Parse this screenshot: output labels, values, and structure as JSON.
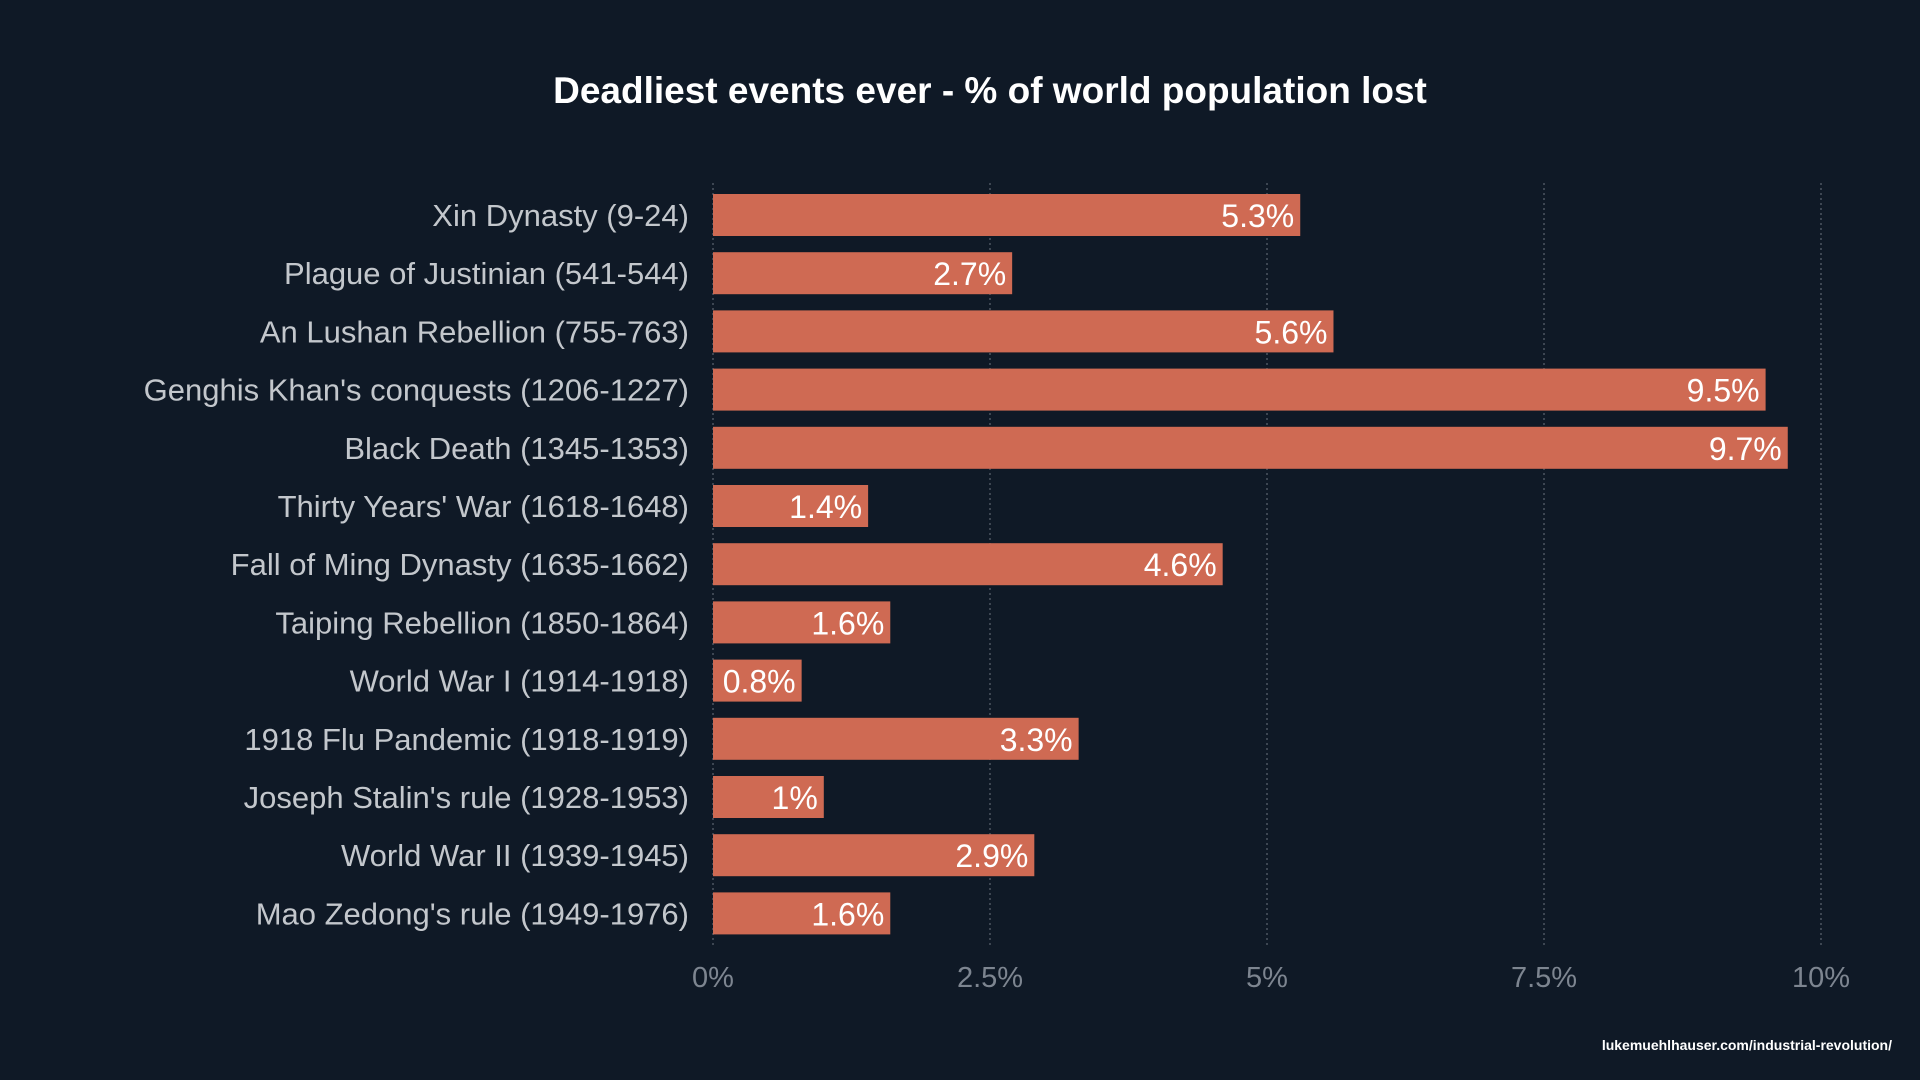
{
  "chart_data": {
    "type": "bar",
    "orientation": "horizontal",
    "title": "Deadliest events ever - % of world population lost",
    "categories": [
      "Xin Dynasty (9-24)",
      "Plague of Justinian (541-544)",
      "An Lushan Rebellion (755-763)",
      "Genghis Khan's conquests (1206-1227)",
      "Black Death (1345-1353)",
      "Thirty Years' War (1618-1648)",
      "Fall of Ming Dynasty (1635-1662)",
      "Taiping Rebellion (1850-1864)",
      "World War I (1914-1918)",
      "1918 Flu Pandemic (1918-1919)",
      "Joseph Stalin's rule (1928-1953)",
      "World War II (1939-1945)",
      "Mao Zedong's rule (1949-1976)"
    ],
    "values": [
      5.3,
      2.7,
      5.6,
      9.5,
      9.7,
      1.4,
      4.6,
      1.6,
      0.8,
      3.3,
      1,
      2.9,
      1.6
    ],
    "value_labels": [
      "5.3%",
      "2.7%",
      "5.6%",
      "9.5%",
      "9.7%",
      "1.4%",
      "4.6%",
      "1.6%",
      "0.8%",
      "3.3%",
      "1%",
      "2.9%",
      "1.6%"
    ],
    "xlim": [
      0,
      10
    ],
    "x_ticks": [
      0,
      2.5,
      5,
      7.5,
      10
    ],
    "x_tick_labels": [
      "0%",
      "2.5%",
      "5%",
      "7.5%",
      "10%"
    ],
    "xlabel": "",
    "ylabel": "",
    "grid": "vertical dotted",
    "legend": "none",
    "colors": {
      "background": "#0f1926",
      "bar": "#cf6a53",
      "title": "#ffffff",
      "category_text": "#c3c7cc",
      "value_text": "#ffffff",
      "tick_text": "#7d8590",
      "grid": "#5c6570"
    }
  },
  "source_credit": "lukemuehlhauser.com/industrial-revolution/"
}
